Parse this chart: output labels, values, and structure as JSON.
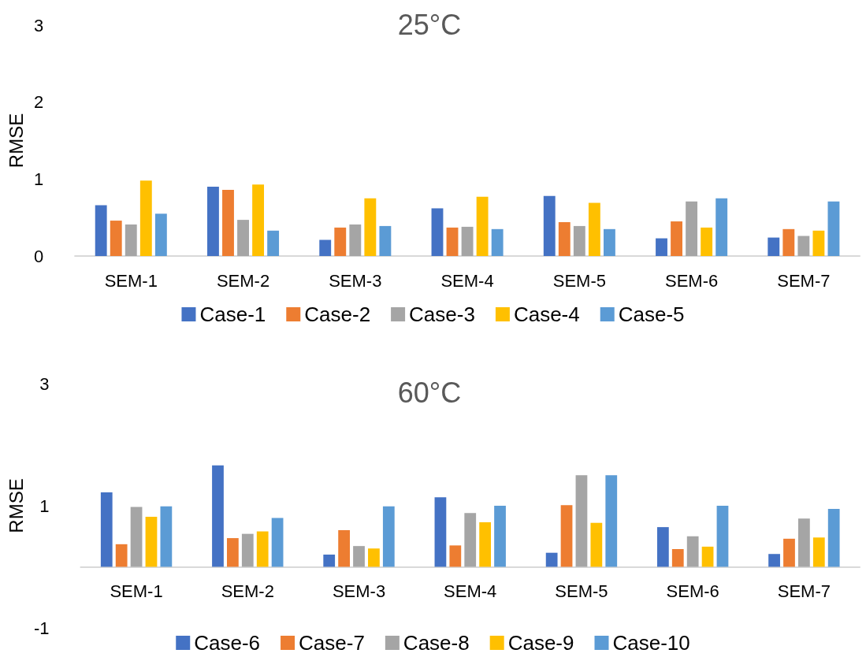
{
  "chart_data": [
    {
      "type": "bar",
      "title": "25°C",
      "ylabel": "RMSE",
      "categories": [
        "SEM-1",
        "SEM-2",
        "SEM-3",
        "SEM-4",
        "SEM-5",
        "SEM-6",
        "SEM-7"
      ],
      "ylim": [
        0,
        3
      ],
      "yticks": [
        0,
        1,
        2,
        3
      ],
      "grid": false,
      "legend": "bottom",
      "series": [
        {
          "name": "Case-1",
          "color": "#4472c4",
          "values": [
            0.66,
            0.9,
            0.21,
            0.62,
            0.78,
            0.23,
            0.24
          ]
        },
        {
          "name": "Case-2",
          "color": "#ed7d31",
          "values": [
            0.46,
            0.86,
            0.37,
            0.37,
            0.44,
            0.45,
            0.35
          ]
        },
        {
          "name": "Case-3",
          "color": "#a5a5a5",
          "values": [
            0.41,
            0.47,
            0.41,
            0.38,
            0.39,
            0.71,
            0.26
          ]
        },
        {
          "name": "Case-4",
          "color": "#ffc000",
          "values": [
            0.98,
            0.93,
            0.75,
            0.77,
            0.69,
            0.37,
            0.33
          ]
        },
        {
          "name": "Case-5",
          "color": "#5b9bd5",
          "values": [
            0.55,
            0.33,
            0.39,
            0.35,
            0.35,
            0.75,
            0.71
          ]
        }
      ]
    },
    {
      "type": "bar",
      "title": "60°C",
      "ylabel": "RMSE",
      "categories": [
        "SEM-1",
        "SEM-2",
        "SEM-3",
        "SEM-4",
        "SEM-5",
        "SEM-6",
        "SEM-7"
      ],
      "ylim": [
        -1,
        3
      ],
      "yticks": [
        -1,
        1,
        3
      ],
      "grid": false,
      "legend": "bottom",
      "series": [
        {
          "name": "Case-6",
          "color": "#4472c4",
          "values": [
            1.22,
            1.66,
            0.2,
            1.14,
            0.23,
            0.65,
            0.21
          ]
        },
        {
          "name": "Case-7",
          "color": "#ed7d31",
          "values": [
            0.37,
            0.47,
            0.6,
            0.35,
            1.01,
            0.29,
            0.46
          ]
        },
        {
          "name": "Case-8",
          "color": "#a5a5a5",
          "values": [
            0.98,
            0.54,
            0.34,
            0.88,
            1.5,
            0.5,
            0.79
          ]
        },
        {
          "name": "Case-9",
          "color": "#ffc000",
          "values": [
            0.82,
            0.58,
            0.3,
            0.73,
            0.72,
            0.33,
            0.48
          ]
        },
        {
          "name": "Case-10",
          "color": "#5b9bd5",
          "values": [
            0.99,
            0.8,
            0.99,
            1.0,
            1.5,
            1.0,
            0.95
          ]
        }
      ]
    }
  ]
}
